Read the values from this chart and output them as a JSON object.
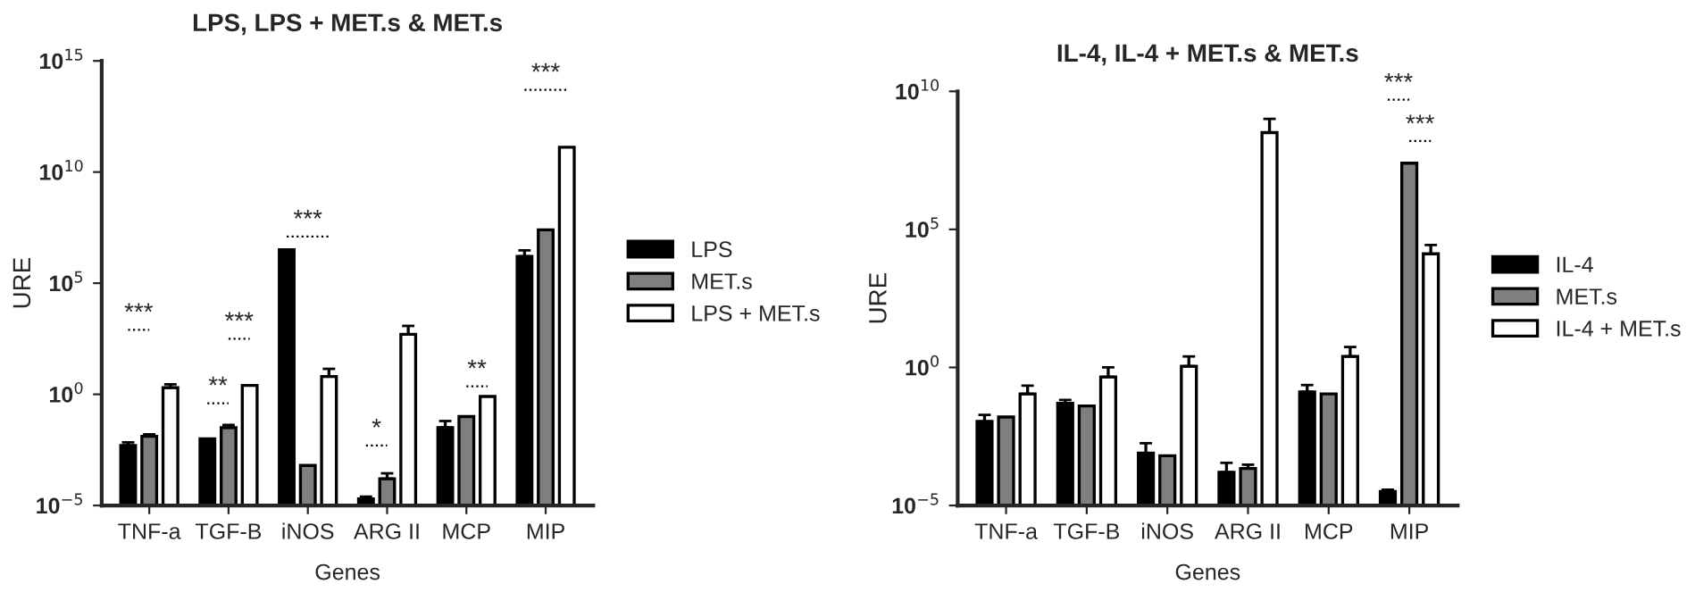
{
  "chart_data": [
    {
      "type": "bar",
      "title": "LPS, LPS + MET.s & MET.s",
      "xlabel": "Genes",
      "ylabel": "URE",
      "categories": [
        "TNF-a",
        "TGF-B",
        "iNOS",
        "ARG II",
        "MCP",
        "MIP"
      ],
      "series": [
        {
          "name": "LPS",
          "color": "#000000",
          "values": [
            0.005,
            0.01,
            3200000.0,
            2e-05,
            0.032,
            1600000.0
          ],
          "errors": [
            [
              0.005,
              0.0069
            ],
            null,
            null,
            [
              2e-05,
              2.5e-05
            ],
            [
              0.032,
              0.063
            ],
            [
              1600000.0,
              3000000.0
            ]
          ]
        },
        {
          "name": "MET.s",
          "color": "#7f7f7f",
          "values": [
            0.013,
            0.032,
            0.00063,
            0.00016,
            0.1,
            25000000.0
          ],
          "errors": [
            [
              0.013,
              0.016
            ],
            [
              0.032,
              0.042
            ],
            null,
            [
              0.00016,
              0.00028
            ],
            null,
            null
          ]
        },
        {
          "name": "LPS + MET.s",
          "color": "#ffffff",
          "values": [
            2,
            2.5,
            6.3,
            500,
            0.8,
            130000000000.0
          ],
          "errors": [
            [
              2,
              2.8
            ],
            null,
            [
              6.3,
              14
            ],
            [
              500,
              1200
            ],
            null,
            null
          ]
        }
      ],
      "log": true,
      "ylim": [
        1e-05,
        1000000000000000.0
      ],
      "yticks": [
        {
          "value": 1e-05,
          "label": "10$^{−5}$"
        },
        {
          "value": 1,
          "label": "10$^{0}$"
        },
        {
          "value": 100000.0,
          "label": "10$^{5}$"
        },
        {
          "value": 10000000000.0,
          "label": "10$^{10}$"
        },
        {
          "value": 1000000000000000.0,
          "label": "10$^{15}$"
        }
      ],
      "grid": false,
      "legend": "right",
      "annotations": [
        "***",
        "**",
        "***",
        "***",
        "*",
        "**",
        "***"
      ]
    },
    {
      "type": "bar",
      "title": "IL-4, IL-4 + MET.s & MET.s",
      "xlabel": "Genes",
      "ylabel": "URE",
      "categories": [
        "TNF-a",
        "TGF-B",
        "iNOS",
        "ARG II",
        "MCP",
        "MIP"
      ],
      "series": [
        {
          "name": "IL-4",
          "color": "#000000",
          "values": [
            0.011,
            0.05,
            0.00079,
            0.00016,
            0.13,
            3.2e-05
          ],
          "errors": [
            [
              0.011,
              0.019
            ],
            [
              0.05,
              0.066
            ],
            [
              0.00079,
              0.0018
            ],
            [
              0.00016,
              0.00035
            ],
            [
              0.13,
              0.23
            ],
            [
              3.2e-05,
              3.7e-05
            ]
          ]
        },
        {
          "name": "MET.s",
          "color": "#7f7f7f",
          "values": [
            0.016,
            0.04,
            0.00063,
            0.00022,
            0.11,
            25000000.0
          ],
          "errors": [
            null,
            null,
            null,
            [
              0.00022,
              0.0003
            ],
            null,
            null
          ]
        },
        {
          "name": "IL-4 + MET.s",
          "color": "#ffffff",
          "values": [
            0.11,
            0.45,
            1.1,
            320000000.0,
            2.5,
            13000.0
          ],
          "errors": [
            [
              0.11,
              0.22
            ],
            [
              0.45,
              1
            ],
            [
              1.1,
              2.5
            ],
            [
              320000000.0,
              1000000000.0
            ],
            [
              2.5,
              5.5
            ],
            [
              13000.0,
              27000.0
            ]
          ]
        }
      ],
      "log": true,
      "ylim": [
        1e-05,
        10000000000.0
      ],
      "yticks": [
        {
          "value": 1e-05,
          "label": "10$^{−5}$"
        },
        {
          "value": 1,
          "label": "10$^{0}$"
        },
        {
          "value": 100000.0,
          "label": "10$^{5}$"
        },
        {
          "value": 10000000000.0,
          "label": "10$^{10}$"
        }
      ],
      "grid": false,
      "legend": "right",
      "annotations": [
        "***",
        "***"
      ]
    }
  ]
}
